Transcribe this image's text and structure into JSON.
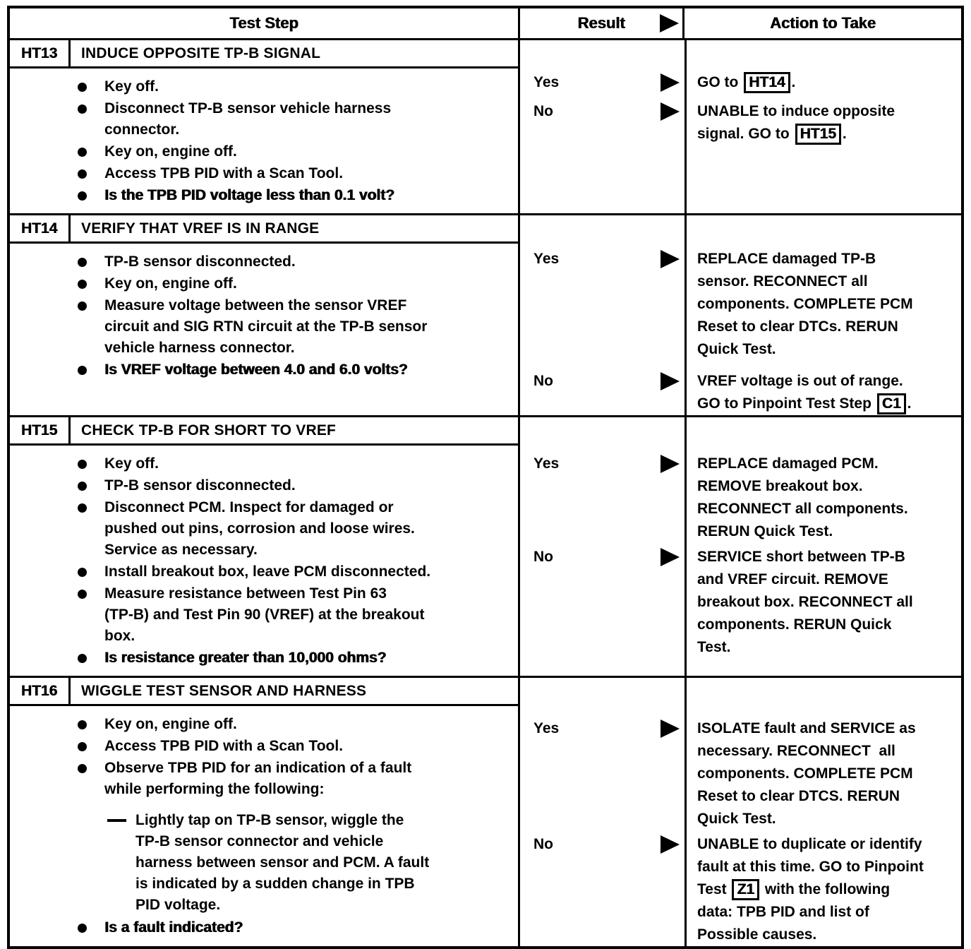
{
  "document": {
    "header": {
      "test_step": "Test Step",
      "result": "Result",
      "action": "Action to Take"
    },
    "steps": [
      {
        "id": "HT13",
        "title": "INDUCE OPPOSITE TP-B SIGNAL",
        "items": [
          {
            "marker": "bullet",
            "emphasis": false,
            "text": "Key off."
          },
          {
            "marker": "bullet",
            "emphasis": false,
            "text": "Disconnect TP-B sensor vehicle harness\nconnector."
          },
          {
            "marker": "bullet",
            "emphasis": false,
            "text": "Key on, engine off."
          },
          {
            "marker": "bullet",
            "emphasis": false,
            "text": "Access TPB PID with a Scan Tool."
          },
          {
            "marker": "bullet",
            "emphasis": true,
            "text": "Is the TPB PID voltage less than 0.1 volt?"
          }
        ],
        "results": [
          {
            "label": "Yes",
            "action": [
              {
                "t": "GO to "
              },
              {
                "box": "HT14"
              },
              {
                "t": "."
              }
            ]
          },
          {
            "label": "No",
            "action": [
              {
                "t": "UNABLE to induce opposite\nsignal. GO to "
              },
              {
                "box": "HT15"
              },
              {
                "t": "."
              }
            ]
          }
        ]
      },
      {
        "id": "HT14",
        "title": "VERIFY THAT VREF IS IN RANGE",
        "items": [
          {
            "marker": "bullet",
            "emphasis": false,
            "text": "TP-B sensor disconnected."
          },
          {
            "marker": "bullet",
            "emphasis": false,
            "text": "Key on, engine off."
          },
          {
            "marker": "bullet",
            "emphasis": false,
            "text": "Measure voltage between the sensor VREF\ncircuit and SIG RTN circuit at the TP-B sensor\nvehicle harness connector."
          },
          {
            "marker": "bullet",
            "emphasis": true,
            "text": "Is VREF voltage between 4.0 and 6.0 volts?"
          }
        ],
        "results": [
          {
            "label": "Yes",
            "action": [
              {
                "t": "REPLACE damaged TP-B\nsensor. RECONNECT all\ncomponents. COMPLETE PCM\nReset to clear DTCs. RERUN\nQuick Test."
              }
            ]
          },
          {
            "label": "No",
            "action": [
              {
                "t": "VREF voltage is out of range.\nGO to Pinpoint Test Step "
              },
              {
                "box": "C1"
              },
              {
                "t": "."
              }
            ]
          }
        ]
      },
      {
        "id": "HT15",
        "title": "CHECK TP-B FOR SHORT TO VREF",
        "items": [
          {
            "marker": "bullet",
            "emphasis": false,
            "text": "Key off."
          },
          {
            "marker": "bullet",
            "emphasis": false,
            "text": "TP-B sensor disconnected."
          },
          {
            "marker": "bullet",
            "emphasis": false,
            "text": "Disconnect PCM. Inspect for damaged or\npushed out pins, corrosion and loose wires.\nService as necessary."
          },
          {
            "marker": "bullet",
            "emphasis": false,
            "text": "Install breakout box, leave PCM disconnected."
          },
          {
            "marker": "bullet",
            "emphasis": false,
            "text": "Measure resistance between Test Pin 63\n(TP-B) and Test Pin 90 (VREF) at the breakout\nbox."
          },
          {
            "marker": "bullet",
            "emphasis": true,
            "text": "Is resistance greater than 10,000 ohms?"
          }
        ],
        "results": [
          {
            "label": "Yes",
            "action": [
              {
                "t": "REPLACE damaged PCM.\nREMOVE breakout box.\nRECONNECT all components.\nRERUN Quick Test."
              }
            ]
          },
          {
            "label": "No",
            "action": [
              {
                "t": "SERVICE short between TP-B\nand VREF circuit. REMOVE\nbreakout box. RECONNECT all\ncomponents. RERUN Quick\nTest."
              }
            ]
          }
        ]
      },
      {
        "id": "HT16",
        "title": "WIGGLE TEST SENSOR AND HARNESS",
        "items": [
          {
            "marker": "bullet",
            "emphasis": false,
            "text": "Key on, engine off."
          },
          {
            "marker": "bullet",
            "emphasis": false,
            "text": "Access TPB PID with a Scan Tool."
          },
          {
            "marker": "bullet",
            "emphasis": false,
            "text": "Observe TPB PID for an indication of a fault\nwhile performing the following:"
          },
          {
            "marker": "dash",
            "emphasis": false,
            "text": "Lightly tap on TP-B sensor, wiggle the\nTP-B sensor connector and vehicle\nharness between sensor and PCM. A fault\nis indicated by a sudden change in TPB\nPID voltage."
          },
          {
            "marker": "bullet",
            "emphasis": true,
            "text": "Is a fault indicated?"
          }
        ],
        "results": [
          {
            "label": "Yes",
            "action": [
              {
                "t": "ISOLATE fault and SERVICE as\nnecessary. RECONNECT  all\ncomponents. COMPLETE PCM\nReset to clear DTCS. RERUN\nQuick Test."
              }
            ]
          },
          {
            "label": "No",
            "action": [
              {
                "t": "UNABLE to duplicate or identify\nfault at this time. GO to Pinpoint\nTest "
              },
              {
                "box": "Z1"
              },
              {
                "t": " with the following\ndata: TPB PID and list of\nPossible causes."
              }
            ]
          }
        ]
      }
    ]
  },
  "colors": {
    "ink": "#000000",
    "paper": "#ffffff"
  }
}
